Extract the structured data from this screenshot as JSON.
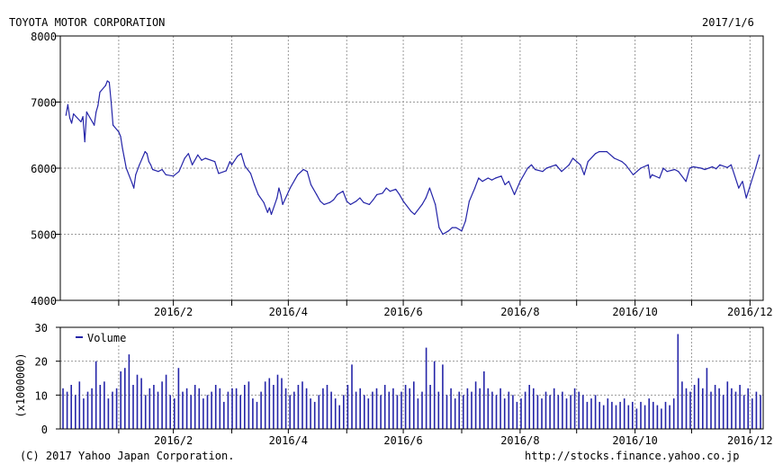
{
  "header": {
    "company": "TOYOTA MOTOR CORPORATION",
    "date": "2017/1/6"
  },
  "footer": {
    "copyright": "(C) 2017 Yahoo Japan Corporation.",
    "url": "http://stocks.finance.yahoo.co.jp"
  },
  "colors": {
    "series": "#2424a8",
    "grid": "#9a9a9a",
    "axis": "#000000"
  },
  "chart_data": [
    {
      "type": "line",
      "title": "TOYOTA MOTOR CORPORATION",
      "x_ticks": [
        "2016/2",
        "2016/4",
        "2016/6",
        "2016/8",
        "2016/10",
        "2016/12"
      ],
      "y_ticks": [
        "4000",
        "5000",
        "6000",
        "7000",
        "8000"
      ],
      "ylim": [
        4000,
        8000
      ],
      "grid": true,
      "series": [
        {
          "name": "",
          "points": [
            [
              "2016/1/4",
              6800
            ],
            [
              "2016/1/5",
              6960
            ],
            [
              "2016/1/6",
              6760
            ],
            [
              "2016/1/7",
              6680
            ],
            [
              "2016/1/8",
              6820
            ],
            [
              "2016/1/12",
              6700
            ],
            [
              "2016/1/13",
              6780
            ],
            [
              "2016/1/14",
              6400
            ],
            [
              "2016/1/15",
              6850
            ],
            [
              "2016/1/18",
              6700
            ],
            [
              "2016/1/19",
              6650
            ],
            [
              "2016/1/20",
              6850
            ],
            [
              "2016/1/21",
              6950
            ],
            [
              "2016/1/22",
              7150
            ],
            [
              "2016/1/25",
              7250
            ],
            [
              "2016/1/26",
              7320
            ],
            [
              "2016/1/27",
              7300
            ],
            [
              "2016/1/28",
              7000
            ],
            [
              "2016/1/29",
              6650
            ],
            [
              "2016/2/1",
              6550
            ],
            [
              "2016/2/2",
              6480
            ],
            [
              "2016/2/3",
              6300
            ],
            [
              "2016/2/4",
              6150
            ],
            [
              "2016/2/5",
              6000
            ],
            [
              "2016/2/8",
              5780
            ],
            [
              "2016/2/9",
              5700
            ],
            [
              "2016/2/10",
              5900
            ],
            [
              "2016/2/12",
              6050
            ],
            [
              "2016/2/15",
              6250
            ],
            [
              "2016/2/16",
              6220
            ],
            [
              "2016/2/17",
              6100
            ],
            [
              "2016/2/18",
              6050
            ],
            [
              "2016/2/19",
              5980
            ],
            [
              "2016/2/22",
              5950
            ],
            [
              "2016/2/24",
              5980
            ],
            [
              "2016/2/26",
              5900
            ],
            [
              "2016/3/1",
              5880
            ],
            [
              "2016/3/4",
              5950
            ],
            [
              "2016/3/7",
              6150
            ],
            [
              "2016/3/9",
              6220
            ],
            [
              "2016/3/11",
              6050
            ],
            [
              "2016/3/14",
              6200
            ],
            [
              "2016/3/16",
              6120
            ],
            [
              "2016/3/18",
              6150
            ],
            [
              "2016/3/23",
              6100
            ],
            [
              "2016/3/25",
              5920
            ],
            [
              "2016/3/29",
              5960
            ],
            [
              "2016/3/31",
              6100
            ],
            [
              "2016/4/1",
              6050
            ],
            [
              "2016/4/4",
              6180
            ],
            [
              "2016/4/6",
              6220
            ],
            [
              "2016/4/8",
              6030
            ],
            [
              "2016/4/11",
              5920
            ],
            [
              "2016/4/13",
              5750
            ],
            [
              "2016/4/15",
              5600
            ],
            [
              "2016/4/18",
              5480
            ],
            [
              "2016/4/20",
              5330
            ],
            [
              "2016/4/21",
              5400
            ],
            [
              "2016/4/22",
              5300
            ],
            [
              "2016/4/25",
              5550
            ],
            [
              "2016/4/26",
              5700
            ],
            [
              "2016/4/27",
              5600
            ],
            [
              "2016/4/28",
              5450
            ],
            [
              "2016/5/2",
              5700
            ],
            [
              "2016/5/6",
              5900
            ],
            [
              "2016/5/9",
              5980
            ],
            [
              "2016/5/11",
              5950
            ],
            [
              "2016/5/13",
              5750
            ],
            [
              "2016/5/16",
              5600
            ],
            [
              "2016/5/18",
              5500
            ],
            [
              "2016/5/20",
              5450
            ],
            [
              "2016/5/23",
              5480
            ],
            [
              "2016/5/25",
              5520
            ],
            [
              "2016/5/27",
              5600
            ],
            [
              "2016/5/30",
              5650
            ],
            [
              "2016/6/1",
              5500
            ],
            [
              "2016/6/3",
              5450
            ],
            [
              "2016/6/6",
              5500
            ],
            [
              "2016/6/8",
              5550
            ],
            [
              "2016/6/10",
              5480
            ],
            [
              "2016/6/13",
              5450
            ],
            [
              "2016/6/15",
              5520
            ],
            [
              "2016/6/17",
              5600
            ],
            [
              "2016/6/20",
              5620
            ],
            [
              "2016/6/22",
              5700
            ],
            [
              "2016/6/24",
              5650
            ],
            [
              "2016/6/27",
              5680
            ],
            [
              "2016/6/29",
              5600
            ],
            [
              "2016/7/1",
              5500
            ],
            [
              "2016/7/5",
              5350
            ],
            [
              "2016/7/7",
              5300
            ],
            [
              "2016/7/11",
              5450
            ],
            [
              "2016/7/13",
              5550
            ],
            [
              "2016/7/15",
              5700
            ],
            [
              "2016/7/18",
              5450
            ],
            [
              "2016/7/20",
              5100
            ],
            [
              "2016/7/22",
              5000
            ],
            [
              "2016/7/25",
              5050
            ],
            [
              "2016/7/27",
              5100
            ],
            [
              "2016/7/29",
              5100
            ],
            [
              "2016/8/1",
              5050
            ],
            [
              "2016/8/3",
              5200
            ],
            [
              "2016/8/5",
              5500
            ],
            [
              "2016/8/8",
              5700
            ],
            [
              "2016/8/10",
              5850
            ],
            [
              "2016/8/12",
              5800
            ],
            [
              "2016/8/15",
              5850
            ],
            [
              "2016/8/17",
              5820
            ],
            [
              "2016/8/19",
              5850
            ],
            [
              "2016/8/22",
              5880
            ],
            [
              "2016/8/24",
              5750
            ],
            [
              "2016/8/26",
              5800
            ],
            [
              "2016/8/29",
              5600
            ],
            [
              "2016/9/1",
              5800
            ],
            [
              "2016/9/5",
              6000
            ],
            [
              "2016/9/7",
              6050
            ],
            [
              "2016/9/9",
              5980
            ],
            [
              "2016/9/13",
              5950
            ],
            [
              "2016/9/15",
              6000
            ],
            [
              "2016/9/20",
              6050
            ],
            [
              "2016/9/23",
              5950
            ],
            [
              "2016/9/27",
              6050
            ],
            [
              "2016/9/29",
              6150
            ],
            [
              "2016/10/3",
              6050
            ],
            [
              "2016/10/5",
              5900
            ],
            [
              "2016/10/7",
              6100
            ],
            [
              "2016/10/11",
              6220
            ],
            [
              "2016/10/13",
              6250
            ],
            [
              "2016/10/17",
              6250
            ],
            [
              "2016/10/19",
              6200
            ],
            [
              "2016/10/21",
              6150
            ],
            [
              "2016/10/25",
              6100
            ],
            [
              "2016/10/27",
              6050
            ],
            [
              "2016/10/31",
              5900
            ],
            [
              "2016/11/2",
              5950
            ],
            [
              "2016/11/4",
              6000
            ],
            [
              "2016/11/8",
              6050
            ],
            [
              "2016/11/9",
              5850
            ],
            [
              "2016/11/10",
              5900
            ],
            [
              "2016/11/14",
              5850
            ],
            [
              "2016/11/16",
              6000
            ],
            [
              "2016/11/18",
              5950
            ],
            [
              "2016/11/22",
              5980
            ],
            [
              "2016/11/24",
              5950
            ],
            [
              "2016/11/28",
              5800
            ],
            [
              "2016/11/30",
              6000
            ],
            [
              "2016/12/2",
              6020
            ],
            [
              "2016/12/6",
              6000
            ],
            [
              "2016/12/8",
              5980
            ],
            [
              "2016/12/12",
              6020
            ],
            [
              "2016/12/14",
              5990
            ],
            [
              "2016/12/16",
              6050
            ],
            [
              "2016/12/20",
              6010
            ],
            [
              "2016/12/22",
              6050
            ],
            [
              "2016/12/26",
              5700
            ],
            [
              "2016/12/28",
              5800
            ],
            [
              "2016/12/30",
              5550
            ],
            [
              "2017/1/4",
              6000
            ],
            [
              "2017/1/5",
              6100
            ],
            [
              "2017/1/6",
              6200
            ]
          ]
        }
      ]
    },
    {
      "type": "bar",
      "legend": "Volume",
      "ylabel": "(x1000000)",
      "x_ticks": [
        "2016/2",
        "2016/4",
        "2016/6",
        "2016/8",
        "2016/10",
        "2016/12"
      ],
      "y_ticks": [
        "0",
        "10",
        "20",
        "30"
      ],
      "ylim": [
        0,
        30
      ],
      "grid": true,
      "legend_position": "top-left",
      "series": [
        {
          "name": "Volume",
          "values": [
            12,
            11,
            13,
            10,
            14,
            9,
            11,
            12,
            20,
            13,
            14,
            9,
            11,
            12,
            17,
            18,
            22,
            13,
            16,
            15,
            10,
            12,
            13,
            11,
            14,
            16,
            10,
            9,
            18,
            11,
            12,
            10,
            13,
            12,
            9,
            10,
            11,
            13,
            12,
            8,
            11,
            12,
            12,
            10,
            13,
            14,
            9,
            8,
            11,
            14,
            15,
            13,
            16,
            15,
            12,
            10,
            11,
            13,
            14,
            12,
            9,
            8,
            10,
            12,
            13,
            11,
            9,
            7,
            10,
            13,
            19,
            11,
            12,
            10,
            9,
            11,
            12,
            10,
            13,
            11,
            12,
            10,
            11,
            13,
            12,
            14,
            9,
            11,
            24,
            13,
            20,
            11,
            19,
            10,
            12,
            9,
            11,
            10,
            12,
            11,
            14,
            12,
            17,
            12,
            11,
            10,
            12,
            9,
            11,
            10,
            8,
            9,
            11,
            13,
            12,
            10,
            9,
            11,
            10,
            12,
            10,
            11,
            9,
            10,
            12,
            11,
            10,
            8,
            9,
            10,
            8,
            7,
            9,
            8,
            7,
            8,
            9,
            7,
            8,
            6,
            8,
            7,
            9,
            8,
            7,
            6,
            8,
            7,
            9,
            28,
            14,
            12,
            11,
            13,
            15,
            12,
            18,
            11,
            13,
            12,
            10,
            14,
            12,
            11,
            13,
            10,
            12,
            9,
            11,
            10
          ]
        }
      ]
    }
  ]
}
